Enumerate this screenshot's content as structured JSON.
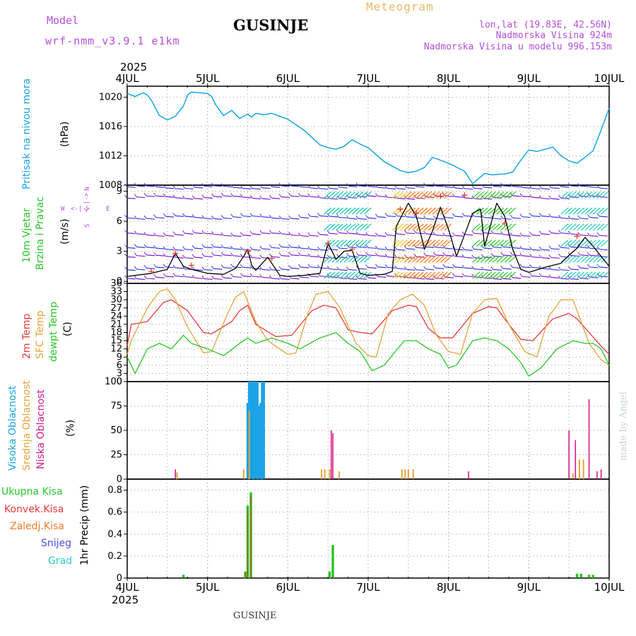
{
  "header": {
    "model_label": "Model",
    "model_name": "wrf-nmm_v3.9.1 e1km",
    "location": "GUSINJE",
    "product": "Meteogram",
    "lonlat": "lon,lat (19.83E, 42.56N)",
    "elevation": "Nadmorska Visina 924m",
    "model_elevation": "Nadmorska Visina u modelu 996.153m",
    "year": "2025",
    "footer_location": "GUSINJE",
    "credit": "made by Angel"
  },
  "colors": {
    "pressure": "#1ba3e6",
    "temp2m": "#e23b3b",
    "sfc": "#e3a43c",
    "dew": "#2bc42b",
    "high_cloud": "#1ba3e6",
    "mid_cloud": "#e3a43c",
    "low_cloud": "#d41a8a",
    "total_precip": "#2bc42b",
    "wind_label": "#2bc42b",
    "magenta_text": "#b44fd8",
    "orange_text": "#e8b96a"
  },
  "chart_data": [
    {
      "id": "pressure",
      "type": "line",
      "ylabel_left": "Pritisak na nivou mora",
      "ylabel_right": "(hPa)",
      "ylim": [
        1008,
        1021.5
      ],
      "yticks": [
        1008,
        1012,
        1016,
        1020
      ],
      "x": [
        0,
        0.1,
        0.2,
        0.25,
        0.3,
        0.4,
        0.5,
        0.6,
        0.7,
        0.75,
        0.8,
        0.9,
        1.0,
        1.05,
        1.1,
        1.2,
        1.3,
        1.4,
        1.45,
        1.5,
        1.55,
        1.6,
        1.7,
        1.8,
        1.9,
        2.0,
        2.2,
        2.4,
        2.5,
        2.6,
        2.7,
        2.8,
        2.9,
        3.0,
        3.2,
        3.4,
        3.5,
        3.6,
        3.7,
        3.8,
        4.0,
        4.2,
        4.3,
        4.45,
        4.55,
        4.65,
        4.7,
        4.8,
        4.9,
        5.0,
        5.1,
        5.2,
        5.3,
        5.4,
        5.5,
        5.6,
        5.7,
        5.8,
        5.9,
        6.0
      ],
      "values": [
        1020.5,
        1020.1,
        1020.6,
        1020.3,
        1019.6,
        1017.5,
        1016.9,
        1017.4,
        1018.8,
        1020.3,
        1020.7,
        1020.6,
        1020.5,
        1020.1,
        1019.0,
        1017.5,
        1018.2,
        1017.1,
        1017.4,
        1017.7,
        1017.3,
        1017.8,
        1017.6,
        1017.8,
        1017.4,
        1017.0,
        1015.5,
        1013.5,
        1013.1,
        1012.9,
        1013.3,
        1014.2,
        1013.6,
        1013.1,
        1011.2,
        1010.0,
        1009.7,
        1009.9,
        1010.4,
        1011.8,
        1011.0,
        1009.9,
        1008.2,
        1009.6,
        1009.4,
        1009.5,
        1009.5,
        1009.8,
        1011.4,
        1012.8,
        1012.6,
        1012.9,
        1013.2,
        1012.0,
        1011.3,
        1011.0,
        1011.8,
        1012.7,
        1015.5,
        1018.5
      ]
    },
    {
      "id": "wind",
      "type": "line",
      "ylabel_left": [
        "10m Vjetar",
        "Brzina i Pravac"
      ],
      "ylabel_right": "(m/s)",
      "direction_legend": [
        "N",
        "<-|->",
        "W",
        "E",
        "S"
      ],
      "ylim": [
        -0.2,
        9.6
      ],
      "yticks": [
        0,
        3,
        6,
        9
      ],
      "x": [
        0,
        0.3,
        0.5,
        0.6,
        0.7,
        0.8,
        1.0,
        1.2,
        1.35,
        1.45,
        1.5,
        1.55,
        1.6,
        1.75,
        1.9,
        2.0,
        2.2,
        2.4,
        2.5,
        2.6,
        2.7,
        2.8,
        2.9,
        3.0,
        3.2,
        3.3,
        3.35,
        3.5,
        3.6,
        3.7,
        3.8,
        3.9,
        4.0,
        4.1,
        4.3,
        4.4,
        4.45,
        4.6,
        4.7,
        4.8,
        4.9,
        5.0,
        5.2,
        5.4,
        5.5,
        5.6,
        5.7,
        5.8,
        5.9,
        6.0
      ],
      "values": [
        0.5,
        0.8,
        1.2,
        2.8,
        1.5,
        1.2,
        0.8,
        0.7,
        1.3,
        2.5,
        3.2,
        1.6,
        1.1,
        2.4,
        0.6,
        0.5,
        0.6,
        0.8,
        3.8,
        2.2,
        3.0,
        3.1,
        0.8,
        0.6,
        0.7,
        1.0,
        5.5,
        7.8,
        6.5,
        3.2,
        5.0,
        7.4,
        5.2,
        2.5,
        6.8,
        7.2,
        3.5,
        7.8,
        6.5,
        3.2,
        1.2,
        0.9,
        1.4,
        1.8,
        2.6,
        3.3,
        4.4,
        3.5,
        2.5,
        1.5
      ],
      "marker_x": [
        0.3,
        0.6,
        0.8,
        1.5,
        1.8,
        2.5,
        2.8,
        3.4,
        3.6,
        3.9,
        4.2,
        4.7,
        5.6
      ],
      "marker_values": [
        1.0,
        2.8,
        1.6,
        3.0,
        2.3,
        3.8,
        3.2,
        7.2,
        6.8,
        8.5,
        8.6,
        5.8,
        4.5
      ]
    },
    {
      "id": "temperature",
      "type": "line",
      "ylabel_left": [
        "2m Temp",
        "SFC Temp",
        "dewpt Temp"
      ],
      "ylabel_right": "(C)",
      "ylim": [
        0,
        36
      ],
      "yticks": [
        0,
        3,
        6,
        9,
        12,
        15,
        18,
        21,
        24,
        27,
        30,
        33,
        36
      ],
      "series": [
        {
          "name": "2m Temp",
          "x": [
            0,
            0.05,
            0.25,
            0.45,
            0.55,
            0.75,
            0.95,
            1.05,
            1.3,
            1.4,
            1.5,
            1.6,
            1.85,
            2.05,
            2.3,
            2.45,
            2.6,
            2.75,
            2.9,
            3.05,
            3.3,
            3.5,
            3.6,
            3.75,
            3.9,
            4.05,
            4.3,
            4.5,
            4.6,
            4.75,
            4.9,
            5.05,
            5.3,
            5.5,
            5.6,
            5.75,
            5.9,
            6.0
          ],
          "values": [
            13,
            21,
            22,
            29,
            30,
            26,
            18,
            17.5,
            22,
            26,
            28,
            21,
            16.5,
            17,
            26,
            28,
            27,
            19,
            18,
            17.5,
            26,
            28,
            27.5,
            19.5,
            16,
            16,
            25,
            27.5,
            27,
            21,
            15.5,
            15,
            23,
            25,
            23,
            18,
            13,
            10
          ]
        },
        {
          "name": "SFC Temp",
          "x": [
            0,
            0.05,
            0.25,
            0.4,
            0.5,
            0.6,
            0.75,
            0.95,
            1.05,
            1.25,
            1.35,
            1.45,
            1.6,
            1.75,
            2.0,
            2.1,
            2.25,
            2.35,
            2.5,
            2.65,
            2.85,
            3.0,
            3.1,
            3.25,
            3.4,
            3.55,
            3.7,
            3.85,
            4.0,
            4.15,
            4.3,
            4.45,
            4.6,
            4.75,
            4.95,
            5.1,
            5.25,
            5.4,
            5.55,
            5.75,
            5.9,
            6.0
          ],
          "values": [
            10,
            15,
            27,
            33,
            34,
            30,
            20,
            10.5,
            11,
            25,
            31,
            33,
            22,
            15,
            10,
            10.5,
            25,
            32,
            33,
            27,
            14,
            9.5,
            9,
            25,
            30,
            32,
            28,
            17,
            11,
            10,
            25,
            30,
            30.5,
            21,
            11,
            9,
            24,
            30,
            30,
            14,
            8,
            6
          ]
        },
        {
          "name": "dewpt Temp",
          "x": [
            0,
            0.1,
            0.25,
            0.4,
            0.55,
            0.7,
            0.8,
            1.0,
            1.2,
            1.4,
            1.5,
            1.6,
            1.8,
            2.0,
            2.15,
            2.4,
            2.6,
            2.75,
            2.9,
            3.05,
            3.2,
            3.45,
            3.6,
            3.75,
            3.9,
            4.0,
            4.1,
            4.3,
            4.45,
            4.6,
            4.75,
            4.9,
            5.0,
            5.15,
            5.35,
            5.55,
            5.7,
            5.8,
            5.9,
            6.0
          ],
          "values": [
            9,
            3,
            12,
            14,
            12,
            17,
            14,
            12,
            9.5,
            14,
            16,
            14,
            16,
            14,
            12,
            16,
            18,
            14,
            11,
            4,
            6,
            15,
            15,
            12,
            10,
            5,
            6,
            15,
            16,
            15,
            12,
            7,
            2,
            5,
            12,
            15,
            14,
            14,
            12,
            6
          ]
        }
      ]
    },
    {
      "id": "cloud",
      "type": "bar",
      "ylabel_left": [
        "Visoka Oblacnost",
        "Srednja Oblacnost",
        "Niska Oblacnost"
      ],
      "ylabel_right": "(%)",
      "ylim": [
        0,
        100
      ],
      "yticks": [
        0,
        25,
        50,
        75,
        100
      ],
      "series": [
        {
          "name": "Visoka Oblacnost",
          "x": [
            1.5,
            1.52,
            1.54,
            1.56,
            1.58,
            1.6,
            1.62,
            1.64,
            1.66,
            1.68,
            1.7
          ],
          "values": [
            78,
            100,
            100,
            100,
            100,
            100,
            100,
            75,
            78,
            100,
            100
          ]
        },
        {
          "name": "Srednja Oblacnost",
          "x": [
            0.62,
            1.45,
            1.52,
            2.42,
            2.46,
            2.52,
            2.64,
            3.42,
            3.46,
            3.5,
            3.56,
            5.55,
            5.63,
            5.68
          ],
          "values": [
            7,
            10,
            70,
            10,
            10,
            10,
            8,
            10,
            10,
            10,
            10,
            6,
            20,
            20
          ]
        },
        {
          "name": "Niska Oblacnost",
          "x": [
            0.6,
            2.54,
            2.56,
            4.25,
            5.5,
            5.58,
            5.75,
            5.85,
            5.9
          ],
          "values": [
            10,
            50,
            47,
            8,
            50,
            40,
            82,
            8,
            10
          ]
        }
      ]
    },
    {
      "id": "precip",
      "type": "bar",
      "ylabel_left": [
        "Ukupna Kisa",
        "Konvek.Kisa",
        "Zaledj.Kisa",
        "Snijeg",
        "Grad"
      ],
      "ylabel_right": "1hr Precip (mm)",
      "ylim": [
        0,
        0.9
      ],
      "yticks": [
        0,
        0.2,
        0.4,
        0.6,
        0.8
      ],
      "x_dates": [
        "4JUL",
        "5JUL",
        "6JUL",
        "7JUL",
        "8JUL",
        "9JUL",
        "10JUL"
      ],
      "series": [
        {
          "name": "Ukupna Kisa",
          "x": [
            0.7,
            1.47,
            1.5,
            1.54,
            2.52,
            2.56,
            5.6,
            5.65,
            5.75,
            5.8
          ],
          "values": [
            0.03,
            0.06,
            0.66,
            0.78,
            0.06,
            0.3,
            0.04,
            0.04,
            0.03,
            0.03
          ]
        },
        {
          "name": "Konvek.Kisa",
          "x": [
            1.47,
            1.5,
            1.54,
            2.56
          ],
          "values": [
            0.05,
            0.62,
            0.74,
            0.02
          ]
        }
      ]
    }
  ]
}
